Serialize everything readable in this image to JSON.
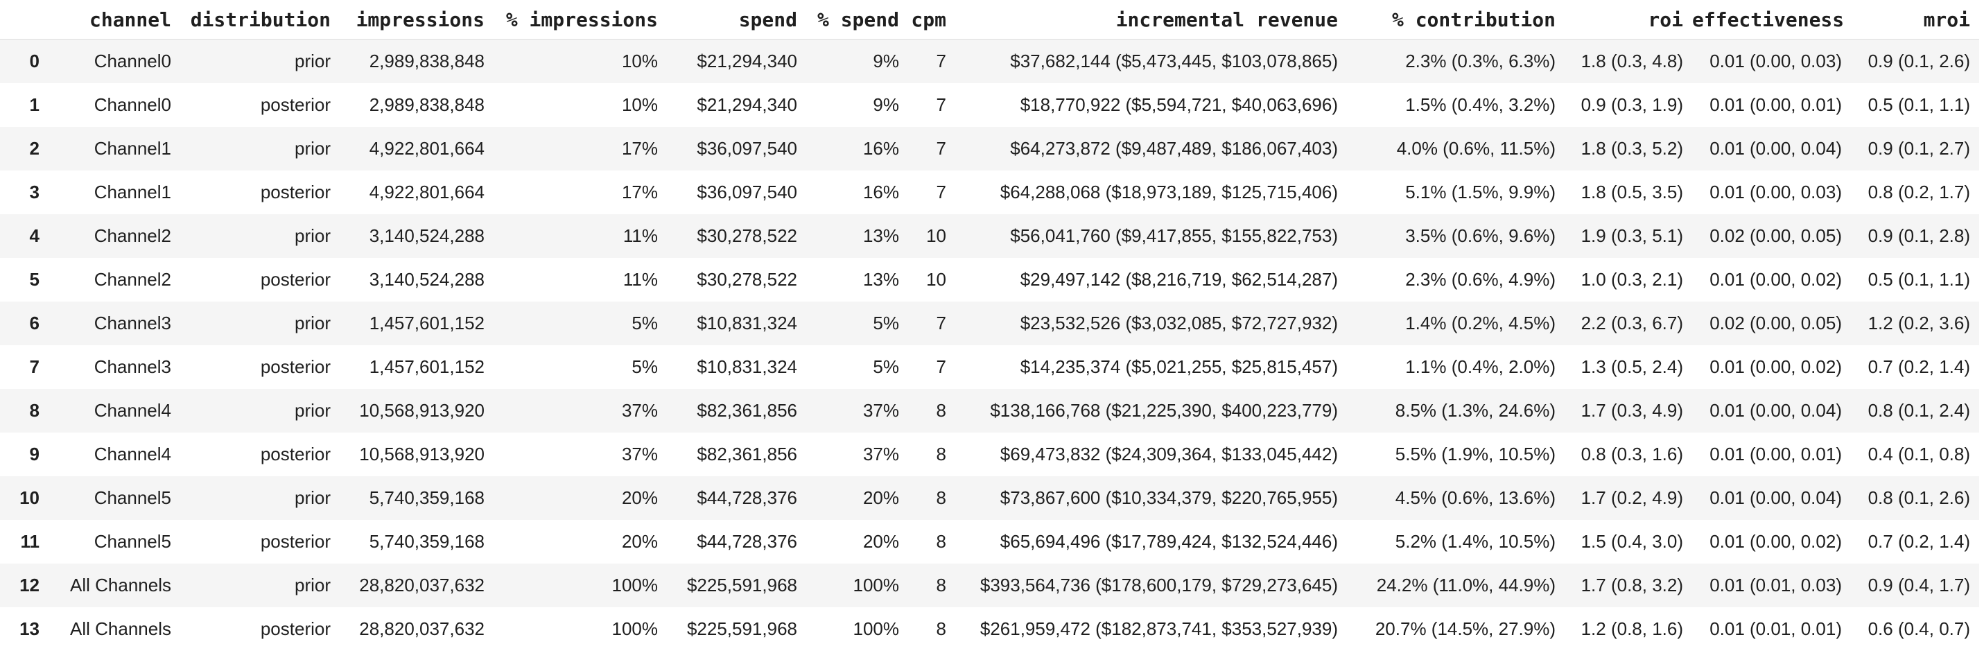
{
  "colors": {
    "background": "#ffffff",
    "row_stripe": "#f5f5f5",
    "header_rule": "#dcdcdc",
    "text": "#1f1f1f"
  },
  "table": {
    "columns": [
      "",
      "channel",
      "distribution",
      "impressions",
      "% impressions",
      "spend",
      "% spend",
      "cpm",
      "incremental revenue",
      "% contribution",
      "roi",
      "effectiveness",
      "mroi"
    ],
    "rows": [
      {
        "cells": [
          "0",
          "Channel0",
          "prior",
          "2,989,838,848",
          "10%",
          "$21,294,340",
          "9%",
          "7",
          "$37,682,144 ($5,473,445, $103,078,865)",
          "2.3% (0.3%, 6.3%)",
          "1.8 (0.3, 4.8)",
          "0.01 (0.00, 0.03)",
          "0.9 (0.1, 2.6)"
        ]
      },
      {
        "cells": [
          "1",
          "Channel0",
          "posterior",
          "2,989,838,848",
          "10%",
          "$21,294,340",
          "9%",
          "7",
          "$18,770,922 ($5,594,721, $40,063,696)",
          "1.5% (0.4%, 3.2%)",
          "0.9 (0.3, 1.9)",
          "0.01 (0.00, 0.01)",
          "0.5 (0.1, 1.1)"
        ]
      },
      {
        "cells": [
          "2",
          "Channel1",
          "prior",
          "4,922,801,664",
          "17%",
          "$36,097,540",
          "16%",
          "7",
          "$64,273,872 ($9,487,489, $186,067,403)",
          "4.0% (0.6%, 11.5%)",
          "1.8 (0.3, 5.2)",
          "0.01 (0.00, 0.04)",
          "0.9 (0.1, 2.7)"
        ]
      },
      {
        "cells": [
          "3",
          "Channel1",
          "posterior",
          "4,922,801,664",
          "17%",
          "$36,097,540",
          "16%",
          "7",
          "$64,288,068 ($18,973,189, $125,715,406)",
          "5.1% (1.5%, 9.9%)",
          "1.8 (0.5, 3.5)",
          "0.01 (0.00, 0.03)",
          "0.8 (0.2, 1.7)"
        ]
      },
      {
        "cells": [
          "4",
          "Channel2",
          "prior",
          "3,140,524,288",
          "11%",
          "$30,278,522",
          "13%",
          "10",
          "$56,041,760 ($9,417,855, $155,822,753)",
          "3.5% (0.6%, 9.6%)",
          "1.9 (0.3, 5.1)",
          "0.02 (0.00, 0.05)",
          "0.9 (0.1, 2.8)"
        ]
      },
      {
        "cells": [
          "5",
          "Channel2",
          "posterior",
          "3,140,524,288",
          "11%",
          "$30,278,522",
          "13%",
          "10",
          "$29,497,142 ($8,216,719, $62,514,287)",
          "2.3% (0.6%, 4.9%)",
          "1.0 (0.3, 2.1)",
          "0.01 (0.00, 0.02)",
          "0.5 (0.1, 1.1)"
        ]
      },
      {
        "cells": [
          "6",
          "Channel3",
          "prior",
          "1,457,601,152",
          "5%",
          "$10,831,324",
          "5%",
          "7",
          "$23,532,526 ($3,032,085, $72,727,932)",
          "1.4% (0.2%, 4.5%)",
          "2.2 (0.3, 6.7)",
          "0.02 (0.00, 0.05)",
          "1.2 (0.2, 3.6)"
        ]
      },
      {
        "cells": [
          "7",
          "Channel3",
          "posterior",
          "1,457,601,152",
          "5%",
          "$10,831,324",
          "5%",
          "7",
          "$14,235,374 ($5,021,255, $25,815,457)",
          "1.1% (0.4%, 2.0%)",
          "1.3 (0.5, 2.4)",
          "0.01 (0.00, 0.02)",
          "0.7 (0.2, 1.4)"
        ]
      },
      {
        "cells": [
          "8",
          "Channel4",
          "prior",
          "10,568,913,920",
          "37%",
          "$82,361,856",
          "37%",
          "8",
          "$138,166,768 ($21,225,390, $400,223,779)",
          "8.5% (1.3%, 24.6%)",
          "1.7 (0.3, 4.9)",
          "0.01 (0.00, 0.04)",
          "0.8 (0.1, 2.4)"
        ]
      },
      {
        "cells": [
          "9",
          "Channel4",
          "posterior",
          "10,568,913,920",
          "37%",
          "$82,361,856",
          "37%",
          "8",
          "$69,473,832 ($24,309,364, $133,045,442)",
          "5.5% (1.9%, 10.5%)",
          "0.8 (0.3, 1.6)",
          "0.01 (0.00, 0.01)",
          "0.4 (0.1, 0.8)"
        ]
      },
      {
        "cells": [
          "10",
          "Channel5",
          "prior",
          "5,740,359,168",
          "20%",
          "$44,728,376",
          "20%",
          "8",
          "$73,867,600 ($10,334,379, $220,765,955)",
          "4.5% (0.6%, 13.6%)",
          "1.7 (0.2, 4.9)",
          "0.01 (0.00, 0.04)",
          "0.8 (0.1, 2.6)"
        ]
      },
      {
        "cells": [
          "11",
          "Channel5",
          "posterior",
          "5,740,359,168",
          "20%",
          "$44,728,376",
          "20%",
          "8",
          "$65,694,496 ($17,789,424, $132,524,446)",
          "5.2% (1.4%, 10.5%)",
          "1.5 (0.4, 3.0)",
          "0.01 (0.00, 0.02)",
          "0.7 (0.2, 1.4)"
        ]
      },
      {
        "cells": [
          "12",
          "All Channels",
          "prior",
          "28,820,037,632",
          "100%",
          "$225,591,968",
          "100%",
          "8",
          "$393,564,736 ($178,600,179, $729,273,645)",
          "24.2% (11.0%, 44.9%)",
          "1.7 (0.8, 3.2)",
          "0.01 (0.01, 0.03)",
          "0.9 (0.4, 1.7)"
        ]
      },
      {
        "cells": [
          "13",
          "All Channels",
          "posterior",
          "28,820,037,632",
          "100%",
          "$225,591,968",
          "100%",
          "8",
          "$261,959,472 ($182,873,741, $353,527,939)",
          "20.7% (14.5%, 27.9%)",
          "1.2 (0.8, 1.6)",
          "0.01 (0.01, 0.01)",
          "0.6 (0.4, 0.7)"
        ]
      }
    ]
  }
}
